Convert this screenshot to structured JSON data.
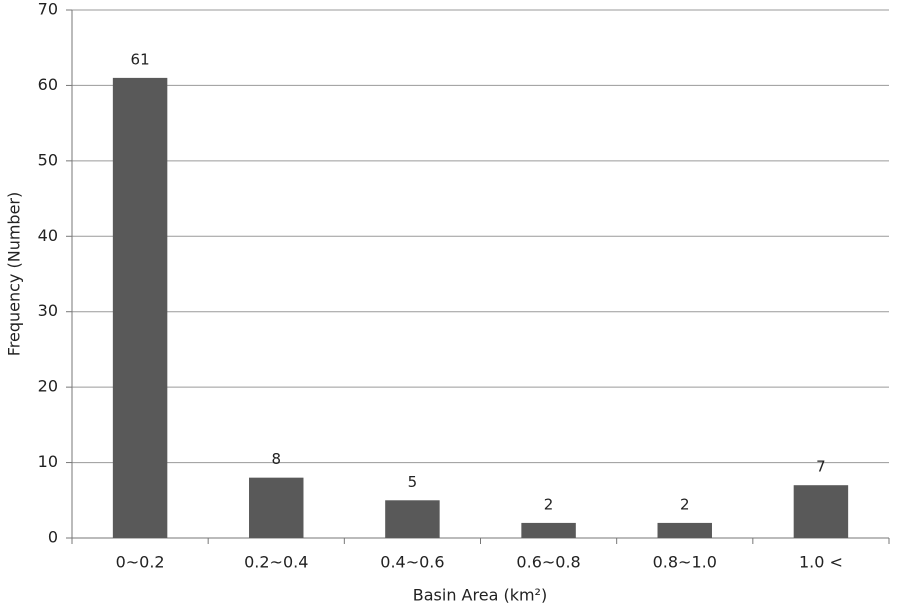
{
  "chart_data": {
    "type": "bar",
    "x_label": "Basin Area (km²)",
    "y_label": "Frequency (Number)",
    "categories": [
      "0~0.2",
      "0.2~0.4",
      "0.4~0.6",
      "0.6~0.8",
      "0.8~1.0",
      "1.0 <"
    ],
    "values": [
      61,
      8,
      5,
      2,
      2,
      7
    ],
    "color": "#595959",
    "ylim": [
      0,
      70
    ],
    "yticks": [
      0,
      10,
      20,
      30,
      40,
      50,
      60,
      70
    ],
    "grid": true
  }
}
